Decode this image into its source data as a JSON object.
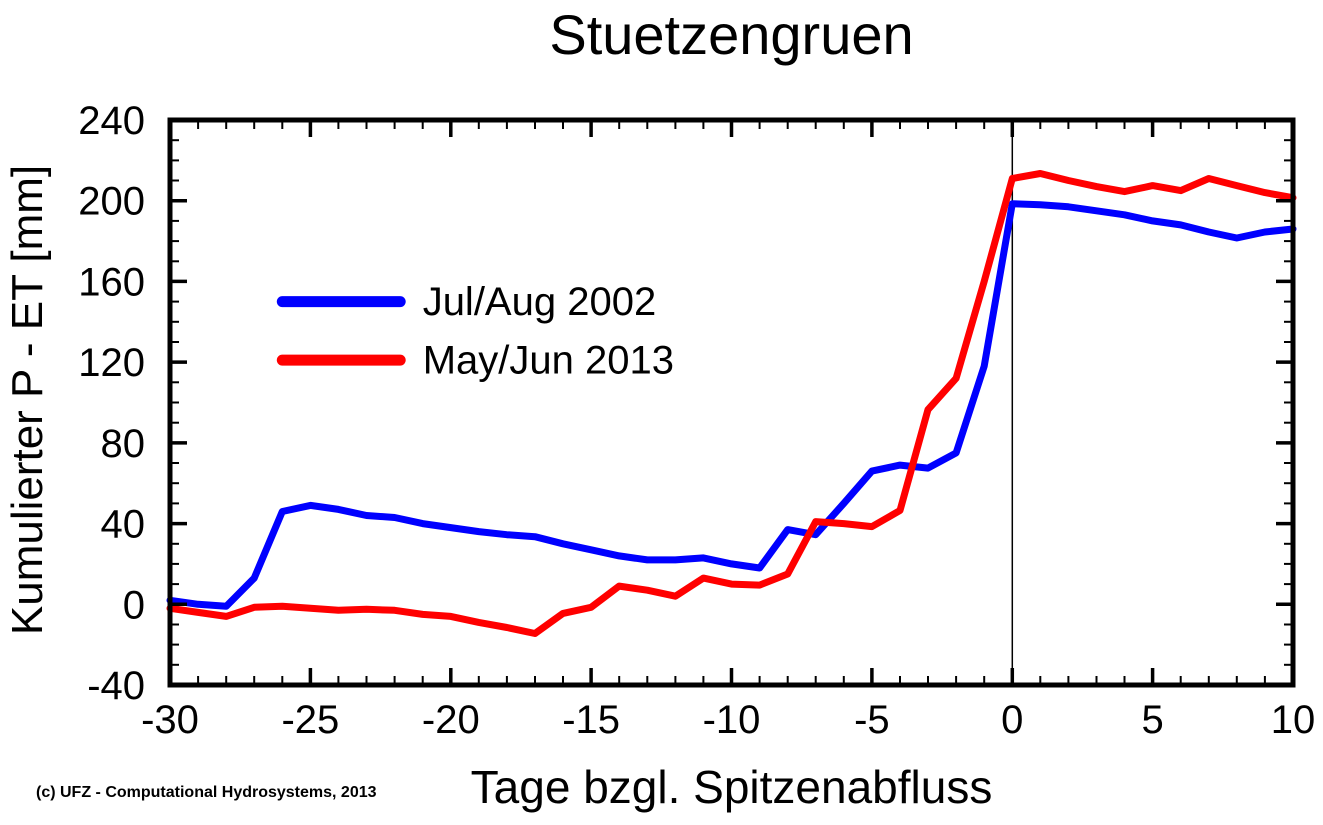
{
  "title": "Stuetzengruen",
  "copyright": "(c) UFZ - Computational Hydrosystems, 2013",
  "chart_data": {
    "type": "line",
    "title": "Stuetzengruen",
    "xlabel": "Tage bzgl. Spitzenabfluss",
    "ylabel": "Kumulierter P - ET [mm]",
    "xlim": [
      -30,
      10
    ],
    "ylim": [
      -40,
      240
    ],
    "x_major_ticks": [
      -30,
      -25,
      -20,
      -15,
      -10,
      -5,
      0,
      5,
      10
    ],
    "x_minor_step": 1,
    "y_major_ticks": [
      -40,
      0,
      40,
      80,
      120,
      160,
      200,
      240
    ],
    "y_minor_step": 10,
    "grid": false,
    "zero_day_vline": 0,
    "legend_position": "inside-upper-left",
    "frame_color": "#000000",
    "x": [
      -30,
      -29,
      -28,
      -27,
      -26,
      -25,
      -24,
      -23,
      -22,
      -21,
      -20,
      -19,
      -18,
      -17,
      -16,
      -15,
      -14,
      -13,
      -12,
      -11,
      -10,
      -9,
      -8,
      -7,
      -6,
      -5,
      -4,
      -3,
      -2,
      -1,
      0,
      1,
      2,
      3,
      4,
      5,
      6,
      7,
      8,
      9,
      10
    ],
    "series": [
      {
        "name": "Jul/Aug 2002",
        "color": "#0000ff",
        "values": [
          2,
          0,
          -1,
          13,
          46,
          49,
          47,
          44,
          43,
          40,
          38,
          36,
          34.5,
          33.5,
          30,
          27,
          24,
          22,
          22,
          23,
          20,
          18,
          37,
          34.5,
          50,
          66,
          69,
          67.5,
          75,
          118,
          198.5,
          198,
          197,
          195,
          193,
          190,
          188,
          184.5,
          181.5,
          184.5,
          186
        ]
      },
      {
        "name": "May/Jun 2013",
        "color": "#ff0000",
        "values": [
          -2,
          -4,
          -6,
          -1.5,
          -1,
          -2,
          -3,
          -2.5,
          -3,
          -5,
          -6,
          -9,
          -11.5,
          -14.5,
          -4.5,
          -1.5,
          9,
          7,
          4,
          13,
          10,
          9.5,
          15,
          41,
          40,
          38.5,
          46.5,
          96.5,
          112,
          160,
          211,
          213.5,
          210,
          207,
          204.5,
          207.5,
          205,
          211,
          207.5,
          204,
          201.5
        ]
      }
    ]
  }
}
